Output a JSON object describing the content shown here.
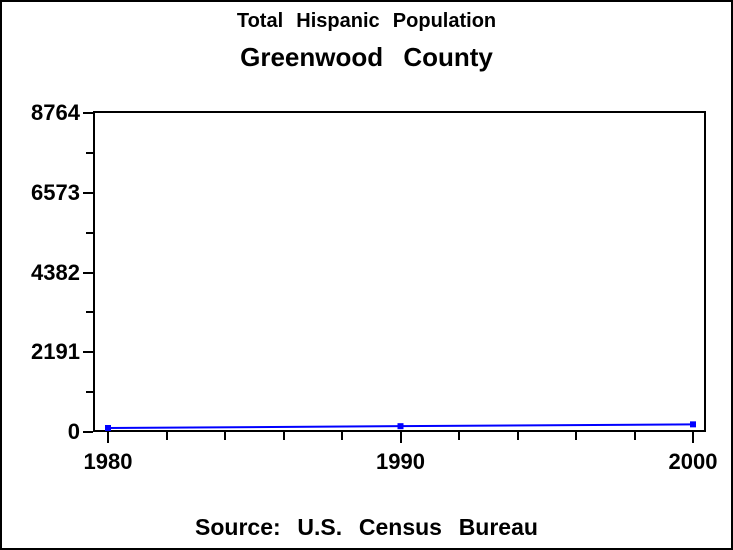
{
  "titles": {
    "subtitle": "Total Hispanic Population",
    "main": "Greenwood County"
  },
  "footer": {
    "source": "Source: U.S. Census Bureau"
  },
  "chart_data": {
    "type": "line",
    "title": "Total Hispanic Population",
    "subtitle": "Greenwood County",
    "source": "Source: U.S. Census Bureau",
    "x": [
      1980,
      1990,
      2000
    ],
    "series": [
      {
        "name": "total-hispanic-population",
        "values": [
          110,
          160,
          210
        ]
      }
    ],
    "x_tick_labels": [
      "1980",
      "1990",
      "2000"
    ],
    "x_minor_tick_step_years": 2,
    "y_ticks": [
      0,
      2191,
      4382,
      6573,
      8764
    ],
    "y_tick_labels": [
      "0",
      "2191",
      "4382",
      "6573",
      "8764"
    ],
    "ylim": [
      0,
      8764
    ],
    "xlim": [
      1980,
      2000
    ],
    "grid": false,
    "legend": "none",
    "line_color": "#0000ff",
    "marker": "square",
    "marker_color": "#0000ff",
    "frame_color": "#000000",
    "background_color": "#ffffff"
  }
}
